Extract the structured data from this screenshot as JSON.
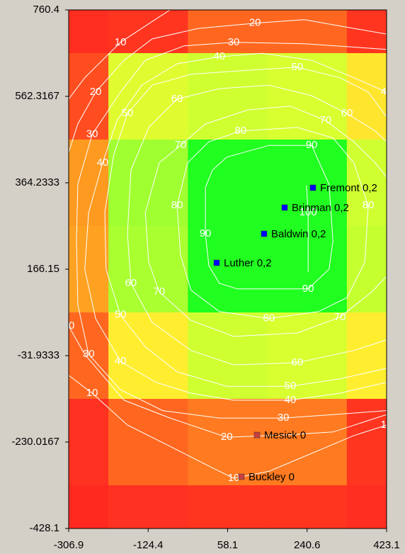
{
  "chart_data": {
    "type": "heatmap",
    "xlim": [
      -306.9,
      423.1
    ],
    "ylim": [
      -428.1,
      760.4
    ],
    "xticks": [
      -306.9,
      -124.4,
      58.1,
      240.6,
      423.1
    ],
    "yticks": [
      760.4,
      562.3167,
      364.2333,
      166.15,
      -31.9333,
      -230.0167,
      -428.1
    ],
    "z": [
      [
        8,
        12,
        22,
        22,
        12
      ],
      [
        18,
        58,
        62,
        60,
        48
      ],
      [
        30,
        72,
        95,
        95,
        62
      ],
      [
        32,
        70,
        95,
        95,
        64
      ],
      [
        22,
        50,
        62,
        60,
        50
      ],
      [
        10,
        22,
        25,
        25,
        12
      ],
      [
        5,
        10,
        12,
        12,
        8
      ]
    ],
    "colorscale": [
      [
        0,
        "#ff2020"
      ],
      [
        15,
        "#ff3a20"
      ],
      [
        30,
        "#ff9a20"
      ],
      [
        50,
        "#ffee30"
      ],
      [
        60,
        "#d8ff30"
      ],
      [
        72,
        "#a0ff30"
      ],
      [
        95,
        "#20ff20"
      ]
    ],
    "contour_color": "#ffffff",
    "contours": [
      {
        "level": 10,
        "x": [
          -306.9,
          -270,
          -188,
          -115,
          -74,
          null,
          -306.9,
          -253,
          -172,
          -74,
          23,
          72,
          153,
          251,
          348,
          423.1
        ],
        "y": [
          556,
          605,
          686,
          734,
          760.4,
          null,
          -77,
          -118,
          -191,
          -240,
          -289,
          -313,
          -297,
          -256,
          -215,
          -191
        ]
      },
      {
        "level": 20,
        "x": [
          -306.9,
          -286,
          -245,
          -180,
          -115,
          -9,
          121,
          234,
          348,
          423.1,
          null,
          -306.9,
          -270,
          -180,
          -74,
          56,
          186,
          300,
          423.1
        ],
        "y": [
          434,
          499,
          572,
          645,
          694,
          718,
          730,
          738,
          718,
          705,
          null,
          36,
          -29,
          -134,
          -175,
          -219,
          -214,
          -207,
          -167
        ]
      },
      {
        "level": 30,
        "x": [
          423.1,
          300,
          186,
          39,
          -91,
          -188,
          -261,
          -286,
          -289,
          -286,
          -253,
          -188,
          -131,
          -42,
          72,
          234,
          423.1
        ],
        "y": [
          -158,
          -167,
          -175,
          -175,
          -158,
          -110,
          -29,
          85,
          231,
          361,
          475,
          572,
          645,
          678,
          686,
          683,
          670
        ]
      },
      {
        "level": 40,
        "x": [
          423.1,
          316,
          202,
          72,
          -26,
          -107,
          -188,
          -245,
          -270,
          -261,
          -229,
          -196,
          -139,
          -58,
          39,
          137,
          251,
          348,
          423.1
        ],
        "y": [
          -93,
          -118,
          -134,
          -134,
          -118,
          -93,
          -45,
          53,
          166,
          296,
          410,
          507,
          588,
          637,
          653,
          661,
          645,
          605,
          572
        ]
      },
      {
        "level": 50,
        "x": [
          423.1,
          316,
          202,
          56,
          -58,
          -131,
          -188,
          -221,
          -224,
          -204,
          -172,
          -115,
          -26,
          88,
          218,
          316,
          381,
          423.1
        ],
        "y": [
          -61,
          -85,
          -102,
          -102,
          -69,
          -12,
          61,
          166,
          296,
          426,
          523,
          588,
          613,
          621,
          629,
          605,
          572,
          515
        ]
      },
      {
        "level": 60,
        "x": [
          423.1,
          348,
          218,
          72,
          -26,
          -115,
          -164,
          -172,
          -164,
          -123,
          -58,
          39,
          153,
          251,
          332,
          397,
          423.1
        ],
        "y": [
          4,
          -20,
          -48,
          -53,
          -20,
          44,
          134,
          247,
          393,
          491,
          556,
          580,
          588,
          564,
          523,
          483,
          458
        ]
      },
      {
        "level": 70,
        "x": [
          423.1,
          389,
          316,
          218,
          72,
          -26,
          -99,
          -123,
          -131,
          -99,
          -50,
          7,
          104,
          202,
          283,
          348,
          397,
          423.1
        ],
        "y": [
          150,
          114,
          56,
          20,
          12,
          49,
          114,
          182,
          296,
          410,
          450,
          499,
          531,
          540,
          507,
          458,
          410,
          377
        ]
      },
      {
        "level": 80,
        "x": [
          15,
          -34,
          -58,
          -50,
          -26,
          39,
          153,
          267,
          332,
          373,
          381,
          348,
          300,
          218,
          88,
          15
        ],
        "y": [
          458,
          410,
          312,
          199,
          118,
          69,
          53,
          69,
          101,
          182,
          312,
          410,
          467,
          491,
          483,
          458
        ]
      },
      {
        "level": 90,
        "x": [
          23,
          7,
          7,
          15,
          39,
          80,
          243,
          291,
          300,
          291,
          251,
          153,
          56,
          23
        ],
        "y": [
          393,
          353,
          247,
          174,
          134,
          121,
          121,
          166,
          231,
          361,
          450,
          450,
          423,
          393
        ]
      },
      {
        "level": 100,
        "x": [
          239,
          243,
          243
        ],
        "y": [
          358,
          296,
          160
        ]
      }
    ],
    "points": [
      {
        "name": "Fremont 0,2",
        "x": 254.0,
        "y": 352.9,
        "color": "#0000ff"
      },
      {
        "name": "Brinman 0,2",
        "x": 189.0,
        "y": 307.4,
        "color": "#0000ff"
      },
      {
        "name": "Baldwin 0,2",
        "x": 141.8,
        "y": 247.3,
        "color": "#0000ff"
      },
      {
        "name": "Luther 0,2",
        "x": 32.9,
        "y": 180.8,
        "color": "#0000ff"
      },
      {
        "name": "Mesick 0",
        "x": 125.6,
        "y": -213.8,
        "color": "#c84040"
      },
      {
        "name": "Buckley 0",
        "x": 89.8,
        "y": -309.6,
        "color": "#c84040"
      }
    ]
  }
}
